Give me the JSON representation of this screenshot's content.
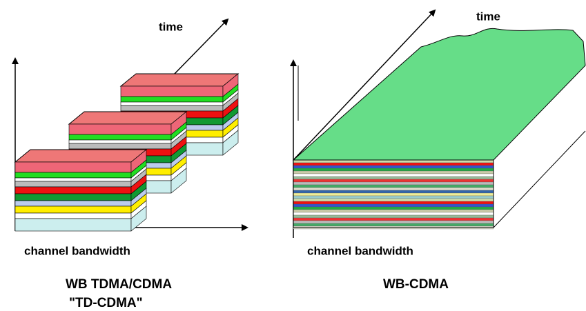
{
  "left": {
    "time_label": "time",
    "axis_label": "channel bandwidth",
    "caption": [
      "WB TDMA/CDMA",
      "\"TD-CDMA\""
    ]
  },
  "right": {
    "time_label": "time",
    "axis_label": "channel bandwidth",
    "caption": [
      "WB-CDMA"
    ]
  }
}
